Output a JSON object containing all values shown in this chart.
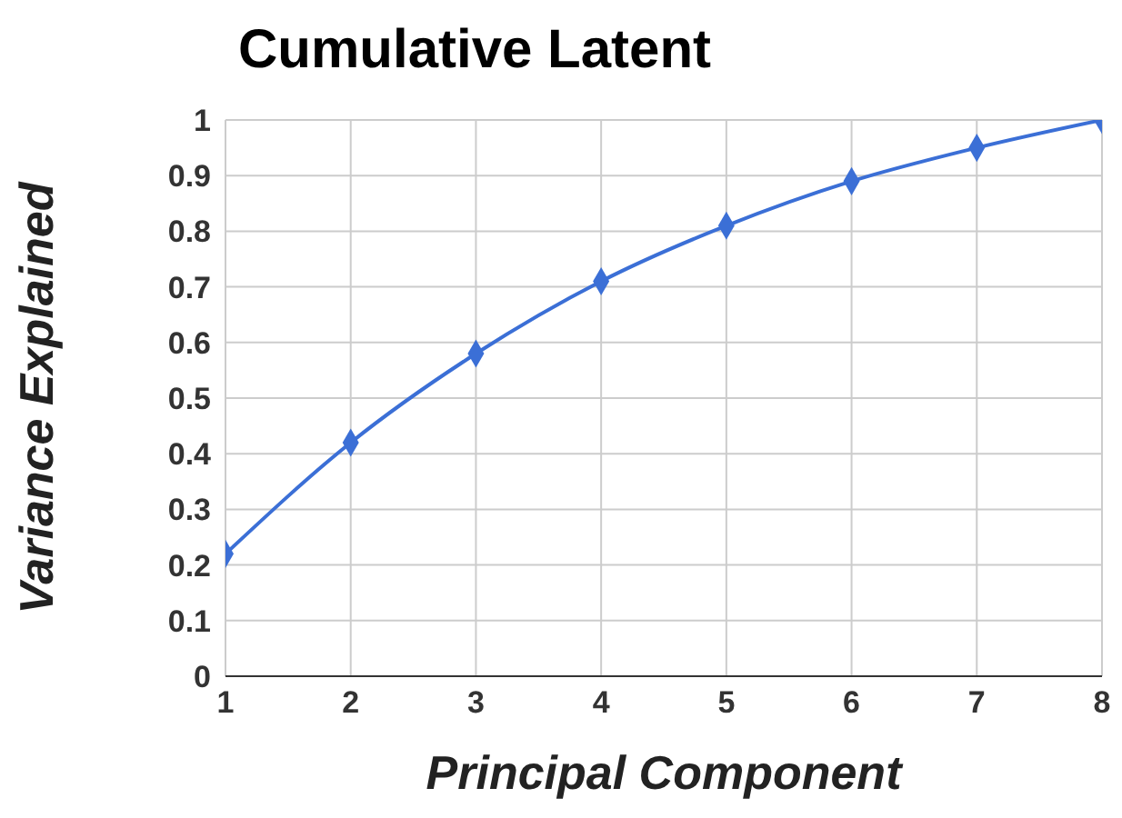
{
  "chart_data": {
    "type": "line",
    "title": "Cumulative Latent",
    "xlabel": "Principal Component",
    "ylabel": "Variance Explained",
    "x": [
      1,
      2,
      3,
      4,
      5,
      6,
      7,
      8
    ],
    "series": [
      {
        "color": "#3b6fd6",
        "values": [
          0.22,
          0.42,
          0.58,
          0.71,
          0.81,
          0.89,
          0.95,
          1
        ]
      }
    ],
    "xlim": [
      1,
      8
    ],
    "xticks": [
      1,
      2,
      3,
      4,
      5,
      6,
      7,
      8
    ],
    "ylim": [
      0,
      1
    ],
    "yticks": [
      0,
      0.1,
      0.2,
      0.3,
      0.4,
      0.5,
      0.6,
      0.7,
      0.8,
      0.9,
      1
    ],
    "grid": true,
    "marker": "diamond",
    "line_style": "solid",
    "legend": false
  }
}
